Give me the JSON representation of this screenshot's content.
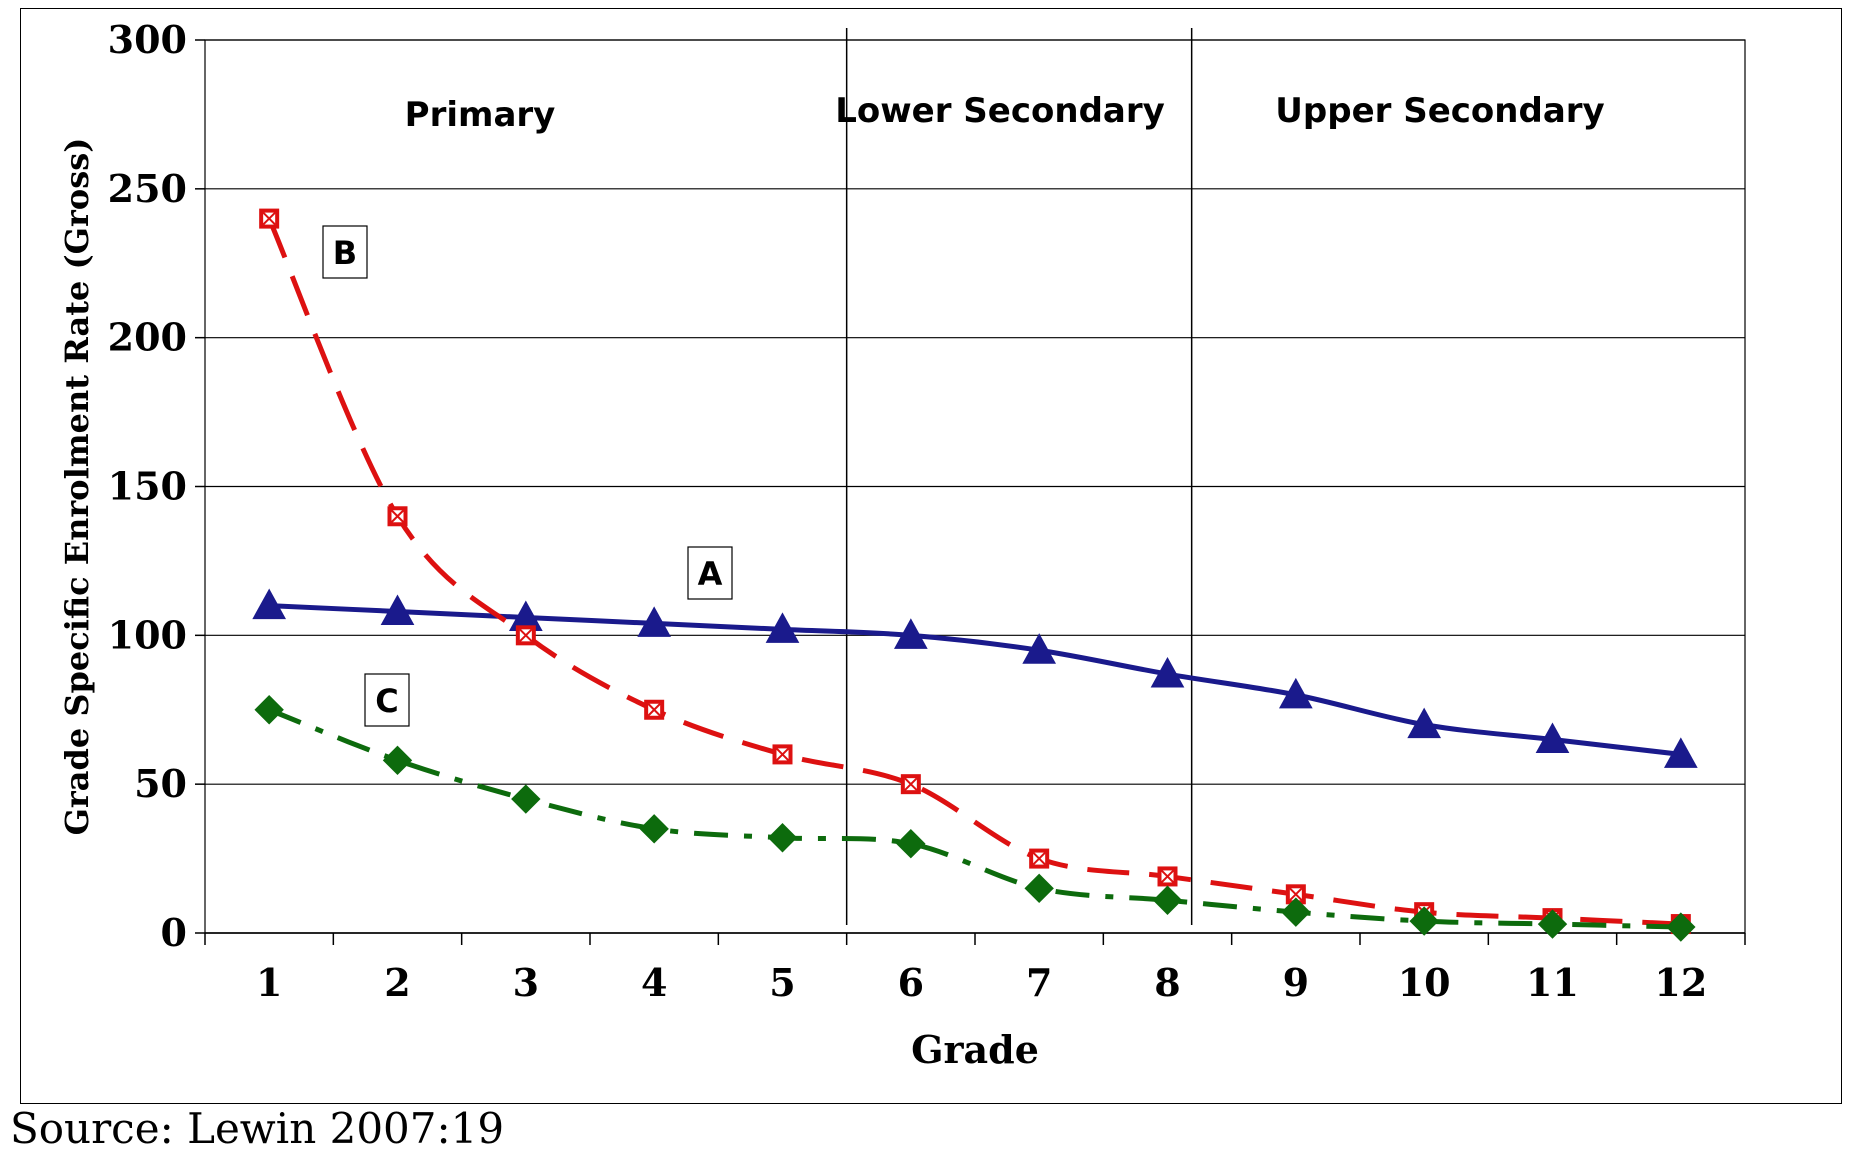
{
  "chart_data": {
    "type": "line",
    "xlabel": "Grade",
    "ylabel": "Grade Specific Enrolment Rate (Gross)",
    "categories": [
      "1",
      "2",
      "3",
      "4",
      "5",
      "6",
      "7",
      "8",
      "9",
      "10",
      "11",
      "12"
    ],
    "ylim": [
      0,
      300
    ],
    "yticks": [
      "0",
      "50",
      "100",
      "150",
      "200",
      "250",
      "300"
    ],
    "grid": "horizontal",
    "regions": [
      {
        "label": "Primary",
        "start_grade": 1,
        "end_grade": 5
      },
      {
        "label": "Lower Secondary",
        "start_grade": 6,
        "end_grade": 8
      },
      {
        "label": "Upper Secondary",
        "start_grade": 9,
        "end_grade": 12
      }
    ],
    "series": [
      {
        "name": "A",
        "color": "#1a1a8c",
        "marker": "triangle",
        "line": "solid",
        "values": [
          110,
          108,
          106,
          104,
          102,
          100,
          95,
          87,
          80,
          70,
          65,
          60
        ]
      },
      {
        "name": "B",
        "color": "#dd1111",
        "marker": "crossed-square",
        "line": "dashed",
        "values": [
          240,
          140,
          100,
          75,
          60,
          50,
          25,
          19,
          13,
          7,
          5,
          3
        ]
      },
      {
        "name": "C",
        "color": "#0d6b0d",
        "marker": "diamond",
        "line": "dash-dot",
        "values": [
          75,
          58,
          45,
          35,
          32,
          30,
          15,
          11,
          7,
          4,
          3,
          2
        ]
      }
    ]
  },
  "source_note": "Source: Lewin 2007:19"
}
